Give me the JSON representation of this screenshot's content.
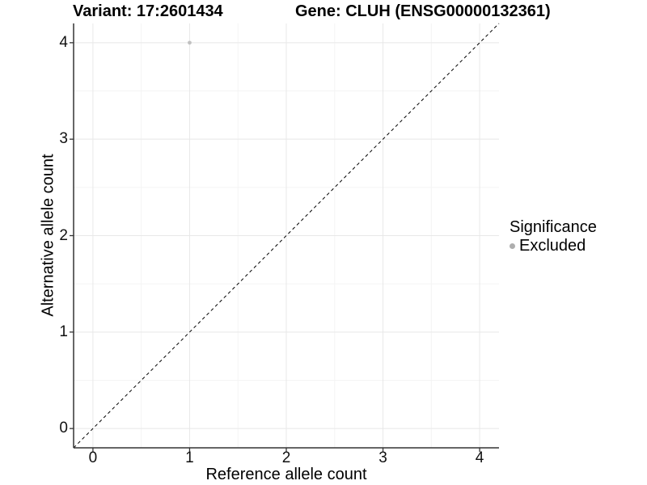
{
  "header": {
    "variant_label": "Variant: 17:2601434",
    "gene_label": "Gene: CLUH (ENSG00000132361)"
  },
  "chart_data": {
    "type": "scatter",
    "title": "Variant: 17:2601434    Gene: CLUH (ENSG00000132361)",
    "xlabel": "Reference allele count",
    "ylabel": "Alternative allele count",
    "xlim": [
      -0.2,
      4.2
    ],
    "ylim": [
      -0.2,
      4.2
    ],
    "x_ticks": [
      0,
      1,
      2,
      3,
      4
    ],
    "y_ticks": [
      0,
      1,
      2,
      3,
      4
    ],
    "grid": "major and minor light gray gridlines on white background",
    "points": [
      {
        "x": 1,
        "y": 4,
        "significance": "Excluded"
      }
    ],
    "reference_line": {
      "slope": 1,
      "intercept": 0,
      "linetype": "dashed",
      "color": "#000000"
    },
    "legend": {
      "position": "right",
      "title": "Significance",
      "items": [
        {
          "label": "Excluded",
          "color": "#aeaeae"
        }
      ]
    }
  },
  "colors": {
    "background": "#ffffff",
    "point": "#c1c1c1",
    "legend_dot": "#aeaeae",
    "major_grid": "#e8e8e8",
    "minor_grid": "#f4f4f4",
    "axis_line": "#333333",
    "reference_line": "#000000",
    "text": "#000000"
  }
}
